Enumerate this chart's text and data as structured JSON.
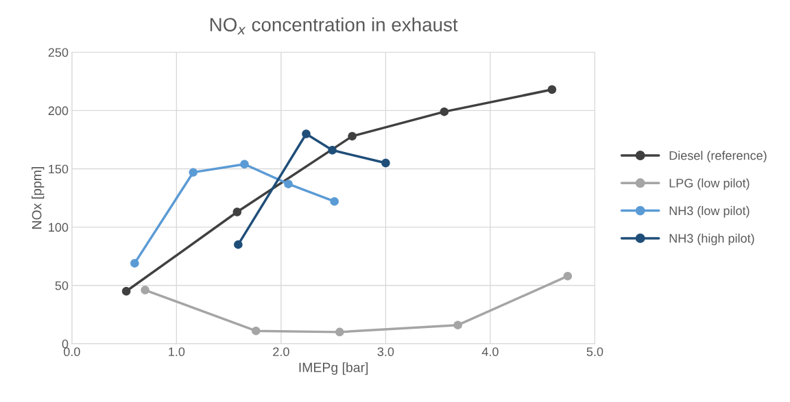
{
  "chart_data": {
    "type": "line",
    "title": "NO$_{x}$ concentration in exhaust",
    "xlabel": "IMEPg [bar]",
    "ylabel": "NOx [ppm]",
    "xlim": [
      0,
      5
    ],
    "xticks": [
      {
        "value": 0,
        "label": "0.0"
      },
      {
        "value": 1,
        "label": "1.0"
      },
      {
        "value": 2,
        "label": "2.0"
      },
      {
        "value": 3,
        "label": "3.0"
      },
      {
        "value": 4,
        "label": "4.0"
      },
      {
        "value": 5,
        "label": "5.0"
      }
    ],
    "ylim": [
      0,
      250
    ],
    "yticks": [
      0,
      50,
      100,
      150,
      200,
      250
    ],
    "grid": true,
    "legend": "right",
    "marker": "circle",
    "line_style": "solid",
    "series": [
      {
        "name": "Diesel (reference)",
        "color": "#404040",
        "x": [
          0.52,
          1.58,
          2.68,
          3.56,
          4.59
        ],
        "values": [
          45,
          113,
          178,
          199,
          218
        ]
      },
      {
        "name": "LPG (low pilot)",
        "color": "#a5a5a5",
        "x": [
          0.7,
          1.76,
          2.56,
          3.69,
          4.74
        ],
        "values": [
          46,
          11,
          10,
          16,
          58
        ]
      },
      {
        "name": "NH3 (low pilot)",
        "color": "#5b9bd5",
        "x": [
          0.6,
          1.16,
          1.65,
          2.07,
          2.51
        ],
        "values": [
          69,
          147,
          154,
          137,
          122
        ]
      },
      {
        "name": "NH3 (high pilot)",
        "color": "#1f4e79",
        "x": [
          1.59,
          2.24,
          2.49,
          3.0
        ],
        "values": [
          85,
          180,
          166,
          155
        ]
      }
    ]
  }
}
